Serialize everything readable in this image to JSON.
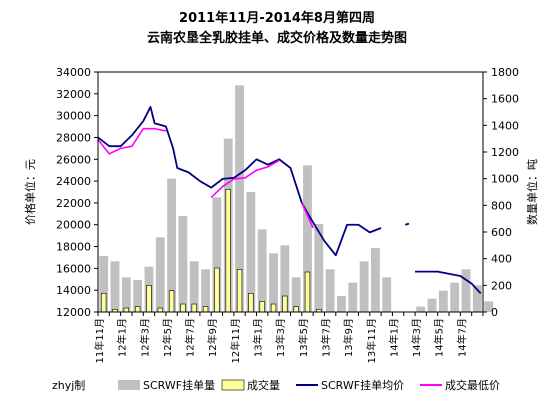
{
  "chart_data": {
    "type": "bar+line",
    "title_line1": "2011年11月-2014年8月第四周",
    "title_line2": "云南农垦全乳胶挂单、成交价格及数量走势图",
    "ylabel_left": "价格单位：元",
    "ylabel_right": "数量单位：吨",
    "ylim_left": [
      12000,
      34000
    ],
    "ylim_right": [
      0,
      1800
    ],
    "yticks_left": [
      12000,
      14000,
      16000,
      18000,
      20000,
      22000,
      24000,
      26000,
      28000,
      30000,
      32000,
      34000
    ],
    "yticks_right": [
      0,
      200,
      400,
      600,
      800,
      1000,
      1200,
      1400,
      1600,
      1800
    ],
    "yticks_left_labels": [
      "12000",
      "14000",
      "16000",
      "18000",
      "20000",
      "22000",
      "24000",
      "26000",
      "28000",
      "30000",
      "32000",
      "34000"
    ],
    "yticks_right_labels": [
      "0",
      "200",
      "400",
      "600",
      "800",
      "1000",
      "1200",
      "1400",
      "1600",
      "1800"
    ],
    "x_start": "2011-11",
    "x_end": "2014-09",
    "xtick_labels": [
      "11年11月",
      "12年1月",
      "12年3月",
      "12年5月",
      "12年7月",
      "12年9月",
      "12年11月",
      "13年1月",
      "13年3月",
      "13年5月",
      "13年7月",
      "13年9月",
      "13年11月",
      "14年1月",
      "14年3月",
      "14年5月",
      "14年7月"
    ],
    "grid": false,
    "legend_position": "bottom",
    "footer": "zhyj制",
    "legend": [
      {
        "label": "SCRWF挂单量",
        "kind": "bar",
        "color": "#c0c0c0"
      },
      {
        "label": "成交量",
        "kind": "bar",
        "color": "#ffff99"
      },
      {
        "label": "SCRWF挂单均价",
        "kind": "line",
        "color": "#000080"
      },
      {
        "label": "成交最低价",
        "kind": "line",
        "color": "#ff00ff"
      }
    ],
    "series": [
      {
        "name": "SCRWF挂单均价",
        "axis": "left",
        "color": "#000080",
        "segments": [
          [
            [
              "2011-11",
              28000
            ],
            [
              "2011-12",
              27200
            ],
            [
              "2012-01",
              27200
            ],
            [
              "2012-02",
              28200
            ],
            [
              "2012-03",
              29500
            ],
            [
              "2012-03-20",
              30800
            ],
            [
              "2012-04",
              29300
            ],
            [
              "2012-05",
              29000
            ],
            [
              "2012-05-20",
              27000
            ],
            [
              "2012-06",
              25200
            ],
            [
              "2012-07",
              24800
            ],
            [
              "2012-08",
              24000
            ],
            [
              "2012-09",
              23400
            ],
            [
              "2012-10",
              24200
            ],
            [
              "2012-11",
              24300
            ],
            [
              "2012-12",
              25000
            ],
            [
              "2013-01",
              26000
            ],
            [
              "2013-02",
              25500
            ],
            [
              "2013-03",
              26000
            ],
            [
              "2013-04",
              25200
            ],
            [
              "2013-05",
              22000
            ],
            [
              "2013-06",
              20200
            ],
            [
              "2013-07",
              18500
            ],
            [
              "2013-08",
              17200
            ],
            [
              "2013-09",
              20000
            ],
            [
              "2013-10",
              20000
            ],
            [
              "2013-11",
              19300
            ],
            [
              "2013-12",
              19700
            ]
          ],
          [
            [
              "2014-02-05",
              20000
            ],
            [
              "2014-02-15",
              20100
            ]
          ],
          [
            [
              "2014-03",
              15700
            ],
            [
              "2014-05",
              15700
            ],
            [
              "2014-07",
              15300
            ],
            [
              "2014-08",
              14600
            ],
            [
              "2014-08-25",
              13700
            ]
          ]
        ]
      },
      {
        "name": "成交最低价",
        "axis": "left",
        "color": "#ff00ff",
        "segments": [
          [
            [
              "2011-11",
              27800
            ],
            [
              "2011-12",
              26500
            ],
            [
              "2012-01",
              27000
            ],
            [
              "2012-02",
              27200
            ],
            [
              "2012-03",
              28800
            ],
            [
              "2012-04",
              28800
            ],
            [
              "2012-05",
              28600
            ]
          ],
          [
            [
              "2012-09",
              22500
            ],
            [
              "2012-10",
              23500
            ],
            [
              "2012-11",
              24200
            ],
            [
              "2012-12",
              24300
            ],
            [
              "2013-01",
              25000
            ],
            [
              "2013-02",
              25300
            ],
            [
              "2013-03",
              25900
            ]
          ],
          [
            [
              "2013-05",
              22000
            ],
            [
              "2013-06",
              19700
            ]
          ]
        ]
      },
      {
        "name": "SCRWF挂单量",
        "axis": "right",
        "color": "#c0c0c0",
        "points": [
          [
            "2011-11",
            420
          ],
          [
            "2011-12",
            380
          ],
          [
            "2012-01",
            260
          ],
          [
            "2012-02",
            240
          ],
          [
            "2012-03",
            340
          ],
          [
            "2012-04",
            560
          ],
          [
            "2012-05",
            1000
          ],
          [
            "2012-06",
            720
          ],
          [
            "2012-07",
            380
          ],
          [
            "2012-08",
            320
          ],
          [
            "2012-09",
            860
          ],
          [
            "2012-10",
            1300
          ],
          [
            "2012-11",
            1700
          ],
          [
            "2012-12",
            900
          ],
          [
            "2013-01",
            620
          ],
          [
            "2013-02",
            440
          ],
          [
            "2013-03",
            500
          ],
          [
            "2013-04",
            260
          ],
          [
            "2013-05",
            1100
          ],
          [
            "2013-06",
            660
          ],
          [
            "2013-07",
            320
          ],
          [
            "2013-08",
            120
          ],
          [
            "2013-09",
            220
          ],
          [
            "2013-10",
            380
          ],
          [
            "2013-11",
            480
          ],
          [
            "2013-12",
            260
          ],
          [
            "2014-01",
            0
          ],
          [
            "2014-02",
            0
          ],
          [
            "2014-03",
            40
          ],
          [
            "2014-04",
            100
          ],
          [
            "2014-05",
            160
          ],
          [
            "2014-06",
            220
          ],
          [
            "2014-07",
            320
          ],
          [
            "2014-08",
            200
          ],
          [
            "2014-09",
            80
          ]
        ]
      },
      {
        "name": "成交量",
        "axis": "right",
        "color": "#ffff99",
        "points": [
          [
            "2011-11",
            140
          ],
          [
            "2011-12",
            20
          ],
          [
            "2012-01",
            30
          ],
          [
            "2012-02",
            40
          ],
          [
            "2012-03",
            200
          ],
          [
            "2012-04",
            30
          ],
          [
            "2012-05",
            160
          ],
          [
            "2012-06",
            60
          ],
          [
            "2012-07",
            60
          ],
          [
            "2012-08",
            40
          ],
          [
            "2012-09",
            330
          ],
          [
            "2012-10",
            920
          ],
          [
            "2012-11",
            320
          ],
          [
            "2012-12",
            140
          ],
          [
            "2013-01",
            80
          ],
          [
            "2013-02",
            60
          ],
          [
            "2013-03",
            120
          ],
          [
            "2013-04",
            40
          ],
          [
            "2013-05",
            300
          ],
          [
            "2013-06",
            20
          ],
          [
            "2013-07",
            0
          ],
          [
            "2013-08",
            0
          ],
          [
            "2013-09",
            0
          ],
          [
            "2013-10",
            0
          ],
          [
            "2013-11",
            0
          ],
          [
            "2013-12",
            0
          ],
          [
            "2014-01",
            0
          ],
          [
            "2014-02",
            0
          ],
          [
            "2014-03",
            0
          ],
          [
            "2014-04",
            0
          ],
          [
            "2014-05",
            0
          ],
          [
            "2014-06",
            0
          ],
          [
            "2014-07",
            0
          ],
          [
            "2014-08",
            0
          ],
          [
            "2014-09",
            0
          ]
        ]
      }
    ]
  }
}
